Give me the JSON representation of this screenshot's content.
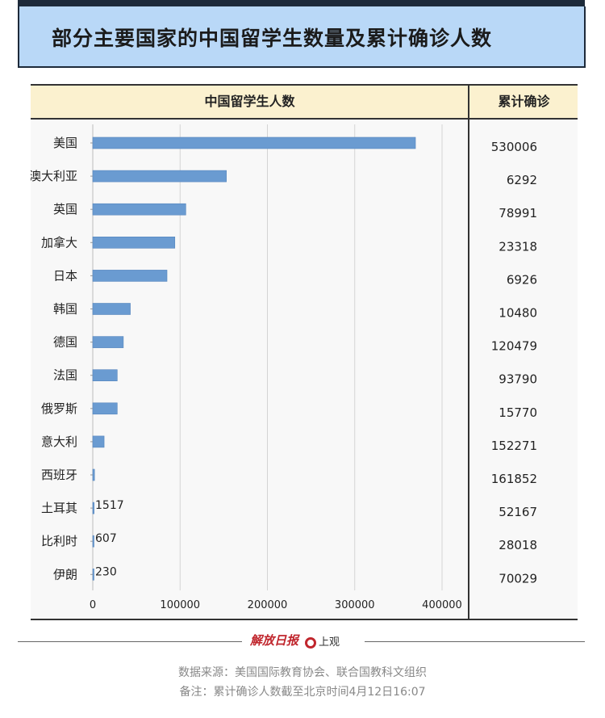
{
  "title": "部分主要国家的中国留学生数量及累计确诊人数",
  "header": {
    "left": "中国留学生人数",
    "right": "累计确诊"
  },
  "chart_data": {
    "type": "bar",
    "orientation": "horizontal",
    "categories": [
      "美国",
      "澳大利亚",
      "英国",
      "加拿大",
      "日本",
      "韩国",
      "德国",
      "法国",
      "俄罗斯",
      "意大利",
      "西班牙",
      "土耳其",
      "比利时",
      "伊朗"
    ],
    "series": [
      {
        "values": [
          369548,
          153011,
          106530,
          94000,
          85000,
          43000,
          35000,
          28000,
          28000,
          13000,
          2000,
          1517,
          607,
          230
        ]
      }
    ],
    "bar_labels": {
      "土耳其": "1517",
      "比利时": "607",
      "伊朗": "230"
    },
    "confirmed": [
      530006,
      6292,
      78991,
      23318,
      6926,
      10480,
      120479,
      93790,
      15770,
      152271,
      161852,
      52167,
      28018,
      70029
    ],
    "xticks": [
      0,
      100000,
      200000,
      300000,
      400000
    ],
    "xlim": [
      0,
      400000
    ],
    "grid": true,
    "bar_color": "#6a9bd1"
  },
  "logo": {
    "name": "解放日报",
    "name2": "上观"
  },
  "footer": {
    "source": "数据来源：美国国际教育协会、联合国教科文组织",
    "note": "备注：累计确诊人数截至北京时间4月12日16:07"
  }
}
